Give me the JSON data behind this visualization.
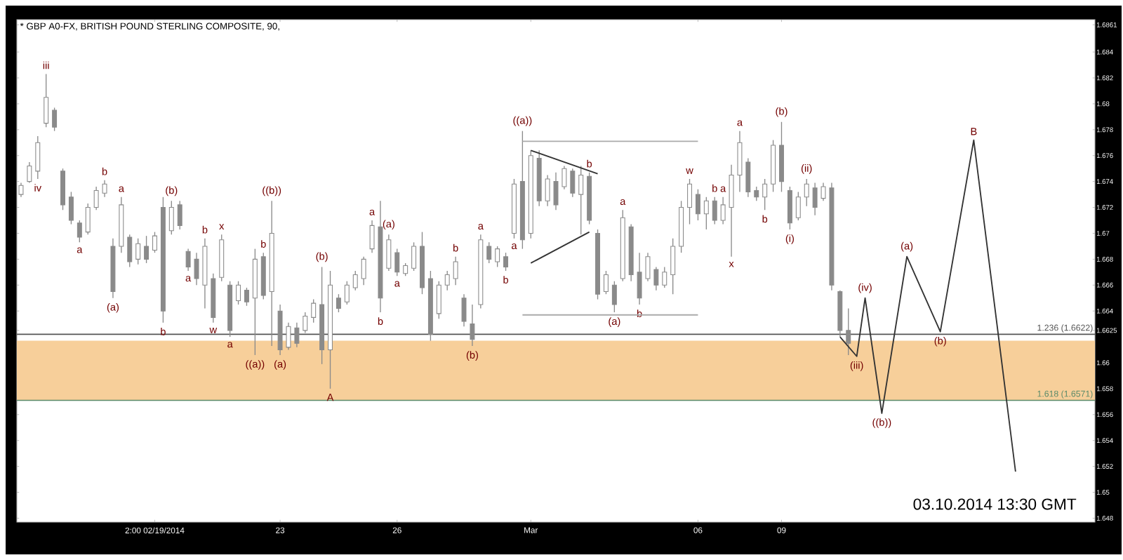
{
  "chart_data": {
    "type": "candlestick",
    "title": "* GBP A0-FX, BRITISH POUND STERLING COMPOSITE, 90,",
    "color": "#8a8a8a",
    "categories": [
      null,
      null,
      null,
      null,
      null,
      null,
      null,
      null,
      null,
      null,
      null,
      null,
      null,
      null,
      null,
      null,
      "2:00 02/19/2014",
      null,
      null,
      null,
      null,
      null,
      null,
      null,
      null,
      null,
      null,
      null,
      null,
      null,
      null,
      "23",
      null,
      null,
      null,
      null,
      null,
      null,
      null,
      null,
      null,
      null,
      null,
      null,
      null,
      "26",
      null,
      null,
      null,
      null,
      null,
      null,
      null,
      null,
      null,
      null,
      null,
      null,
      null,
      null,
      null,
      "Mar",
      null,
      null,
      null,
      null,
      null,
      null,
      null,
      null,
      null,
      null,
      null,
      null,
      null,
      null,
      null,
      null,
      null,
      null,
      null,
      "06",
      null,
      null,
      null,
      null,
      null,
      null,
      null,
      null,
      null,
      "09",
      null,
      null,
      null,
      null,
      null,
      null,
      null,
      null,
      null,
      null,
      null,
      null,
      null,
      null,
      null,
      null,
      null,
      null,
      null,
      null,
      null,
      null,
      null,
      null,
      null,
      null,
      null,
      null,
      null,
      null,
      null,
      null,
      null,
      null,
      null,
      null,
      null
    ],
    "ohlc": [
      [
        1.673,
        1.6739,
        1.6728,
        1.6737
      ],
      [
        1.674,
        1.6755,
        1.6739,
        1.6752
      ],
      [
        1.6748,
        1.6775,
        1.6742,
        1.677
      ],
      [
        1.6785,
        1.6823,
        1.6782,
        1.6805
      ],
      [
        1.6795,
        1.6797,
        1.6779,
        1.6782
      ],
      [
        1.6748,
        1.675,
        1.6718,
        1.6722
      ],
      [
        1.6728,
        1.6732,
        1.6707,
        1.671
      ],
      [
        1.6708,
        1.671,
        1.6693,
        1.6697
      ],
      [
        1.6701,
        1.6723,
        1.6699,
        1.672
      ],
      [
        1.672,
        1.6736,
        1.6718,
        1.6733
      ],
      [
        1.6731,
        1.6741,
        1.6728,
        1.6738
      ],
      [
        1.669,
        1.6696,
        1.665,
        1.6655
      ],
      [
        1.669,
        1.6728,
        1.6685,
        1.6722
      ],
      [
        1.6697,
        1.6699,
        1.6674,
        1.6678
      ],
      [
        1.668,
        1.6696,
        1.6676,
        1.6692
      ],
      [
        1.669,
        1.6698,
        1.6677,
        1.668
      ],
      [
        1.6687,
        1.6701,
        1.6685,
        1.6698
      ],
      [
        1.672,
        1.6728,
        1.6631,
        1.664
      ],
      [
        1.6702,
        1.6725,
        1.6699,
        1.672
      ],
      [
        1.6722,
        1.6725,
        1.6703,
        1.6706
      ],
      [
        1.6686,
        1.6688,
        1.6671,
        1.6674
      ],
      [
        1.668,
        1.6685,
        1.666,
        1.6665
      ],
      [
        1.666,
        1.6696,
        1.6642,
        1.669
      ],
      [
        1.6665,
        1.6669,
        1.6631,
        1.6635
      ],
      [
        1.6666,
        1.6699,
        1.6663,
        1.6695
      ],
      [
        1.666,
        1.6663,
        1.662,
        1.6625
      ],
      [
        1.6648,
        1.6663,
        1.6645,
        1.666
      ],
      [
        1.6656,
        1.6658,
        1.6644,
        1.6647
      ],
      [
        1.665,
        1.6688,
        1.6606,
        1.668
      ],
      [
        1.6682,
        1.6685,
        1.6649,
        1.6652
      ],
      [
        1.6655,
        1.6725,
        1.6613,
        1.67
      ],
      [
        1.664,
        1.6645,
        1.6606,
        1.661
      ],
      [
        1.6612,
        1.6631,
        1.661,
        1.6628
      ],
      [
        1.6627,
        1.6631,
        1.6612,
        1.6615
      ],
      [
        1.6625,
        1.6639,
        1.6623,
        1.6636
      ],
      [
        1.6635,
        1.6649,
        1.6631,
        1.6646
      ],
      [
        1.6645,
        1.6674,
        1.6599,
        1.661
      ],
      [
        1.661,
        1.6671,
        1.658,
        1.666
      ],
      [
        1.665,
        1.6653,
        1.6639,
        1.6642
      ],
      [
        1.6647,
        1.6663,
        1.6645,
        1.666
      ],
      [
        1.6658,
        1.6671,
        1.6656,
        1.6668
      ],
      [
        1.6665,
        1.6682,
        1.666,
        1.668
      ],
      [
        1.6688,
        1.671,
        1.6685,
        1.6706
      ],
      [
        1.6705,
        1.6725,
        1.6639,
        1.665
      ],
      [
        1.6673,
        1.6699,
        1.6671,
        1.6695
      ],
      [
        1.6685,
        1.6688,
        1.6667,
        1.667
      ],
      [
        1.6669,
        1.6677,
        1.6667,
        1.6675
      ],
      [
        1.6673,
        1.6693,
        1.6671,
        1.669
      ],
      [
        1.669,
        1.6701,
        1.6653,
        1.6658
      ],
      [
        1.6665,
        1.6671,
        1.6617,
        1.6622
      ],
      [
        1.6638,
        1.6663,
        1.6634,
        1.666
      ],
      [
        1.666,
        1.6671,
        1.6656,
        1.6668
      ],
      [
        1.6665,
        1.6682,
        1.666,
        1.6678
      ],
      [
        1.665,
        1.6653,
        1.6628,
        1.6632
      ],
      [
        1.663,
        1.6645,
        1.6613,
        1.6618
      ],
      [
        1.6645,
        1.6699,
        1.6642,
        1.6695
      ],
      [
        1.669,
        1.6693,
        1.6677,
        1.668
      ],
      [
        1.6678,
        1.669,
        1.6674,
        1.6688
      ],
      [
        1.6682,
        1.6685,
        1.6671,
        1.6674
      ],
      [
        1.67,
        1.6742,
        1.6696,
        1.6738
      ],
      [
        1.674,
        1.6779,
        1.6688,
        1.6695
      ],
      [
        1.67,
        1.6764,
        1.6696,
        1.676
      ],
      [
        1.6758,
        1.6764,
        1.6721,
        1.6725
      ],
      [
        1.6725,
        1.6745,
        1.6721,
        1.6742
      ],
      [
        1.674,
        1.6747,
        1.6718,
        1.6722
      ],
      [
        1.6736,
        1.6752,
        1.6734,
        1.675
      ],
      [
        1.6748,
        1.675,
        1.6728,
        1.6731
      ],
      [
        1.673,
        1.6752,
        1.6699,
        1.6745
      ],
      [
        1.6744,
        1.6747,
        1.6707,
        1.671
      ],
      [
        1.67,
        1.6703,
        1.6649,
        1.6653
      ],
      [
        1.6655,
        1.6671,
        1.6653,
        1.6668
      ],
      [
        1.666,
        1.6663,
        1.6639,
        1.6645
      ],
      [
        1.6665,
        1.6718,
        1.6663,
        1.6712
      ],
      [
        1.6705,
        1.6707,
        1.6663,
        1.6668
      ],
      [
        1.667,
        1.6685,
        1.6645,
        1.665
      ],
      [
        1.6665,
        1.6685,
        1.6663,
        1.6682
      ],
      [
        1.6672,
        1.6674,
        1.6656,
        1.666
      ],
      [
        1.666,
        1.6674,
        1.6658,
        1.667
      ],
      [
        1.6668,
        1.6696,
        1.6653,
        1.669
      ],
      [
        1.669,
        1.6725,
        1.6685,
        1.672
      ],
      [
        1.672,
        1.6742,
        1.6707,
        1.6738
      ],
      [
        1.673,
        1.6734,
        1.671,
        1.6715
      ],
      [
        1.6715,
        1.6728,
        1.6703,
        1.6725
      ],
      [
        1.6725,
        1.6728,
        1.6707,
        1.671
      ],
      [
        1.671,
        1.6728,
        1.6707,
        1.6722
      ],
      [
        1.672,
        1.6753,
        1.6682,
        1.6745
      ],
      [
        1.6745,
        1.6779,
        1.6732,
        1.677
      ],
      [
        1.6755,
        1.6758,
        1.6728,
        1.6732
      ],
      [
        1.6733,
        1.6736,
        1.6725,
        1.6728
      ],
      [
        1.6728,
        1.6742,
        1.6718,
        1.6738
      ],
      [
        1.6738,
        1.6772,
        1.6732,
        1.6768
      ],
      [
        1.6768,
        1.6786,
        1.6732,
        1.674
      ],
      [
        1.6733,
        1.6736,
        1.6703,
        1.6708
      ],
      [
        1.6712,
        1.6732,
        1.671,
        1.6728
      ],
      [
        1.6728,
        1.6742,
        1.6721,
        1.6738
      ],
      [
        1.6735,
        1.6739,
        1.6714,
        1.672
      ],
      [
        1.6727,
        1.6739,
        1.6725,
        1.6736
      ],
      [
        1.6735,
        1.6739,
        1.6656,
        1.666
      ],
      [
        1.6655,
        1.6656,
        1.662,
        1.6625
      ],
      [
        1.6625,
        1.6642,
        1.6606,
        1.6615
      ],
      null,
      null,
      null,
      null,
      null,
      null,
      null,
      null,
      null,
      null,
      null,
      null,
      null,
      null,
      null,
      null,
      null,
      null,
      null,
      null,
      null,
      null,
      null,
      null,
      null,
      null,
      null,
      null,
      null
    ],
    "value_labels": [
      null,
      null,
      "iv",
      "iii",
      null,
      null,
      null,
      "a",
      null,
      null,
      "b",
      "(a)",
      "a",
      null,
      null,
      null,
      null,
      "b",
      "(b)",
      null,
      "a",
      null,
      "b",
      "w",
      "x",
      "a",
      null,
      null,
      "((a))",
      "b",
      "((b))",
      "(a)",
      null,
      null,
      null,
      null,
      "(b)",
      "A",
      null,
      null,
      null,
      null,
      "a",
      "b",
      "(a)",
      "a",
      null,
      null,
      null,
      null,
      null,
      null,
      "b",
      null,
      "(b)",
      "a",
      null,
      null,
      "b",
      "a",
      "((a))",
      null,
      null,
      null,
      null,
      null,
      null,
      null,
      "b",
      null,
      null,
      "(a)",
      "a",
      null,
      "b",
      null,
      null,
      null,
      null,
      null,
      "w",
      null,
      null,
      "b",
      "a",
      "x",
      "a",
      null,
      null,
      "b",
      null,
      "(b)",
      "(i)",
      null,
      "(ii)",
      null,
      null,
      null,
      null,
      null,
      null,
      null,
      null,
      null,
      null,
      null,
      null,
      null,
      null,
      null,
      null,
      null,
      null,
      null,
      null,
      null,
      null,
      null,
      null,
      null,
      null,
      null,
      null,
      null,
      null,
      null,
      null,
      null,
      null
    ],
    "series": [
      {
        "type": "line",
        "color": "#333333",
        "values": [
          null,
          null,
          null,
          null,
          null,
          null,
          null,
          null,
          null,
          null,
          null,
          null,
          null,
          null,
          null,
          null,
          null,
          null,
          null,
          null,
          null,
          null,
          null,
          null,
          null,
          null,
          null,
          null,
          null,
          null,
          null,
          null,
          null,
          null,
          null,
          null,
          null,
          null,
          null,
          null,
          null,
          null,
          null,
          null,
          null,
          null,
          null,
          null,
          null,
          null,
          null,
          null,
          null,
          null,
          null,
          null,
          null,
          null,
          null,
          null,
          null,
          null,
          null,
          null,
          null,
          null,
          null,
          null,
          null,
          null,
          null,
          null,
          null,
          null,
          null,
          null,
          null,
          null,
          null,
          null,
          null,
          null,
          null,
          null,
          null,
          null,
          null,
          null,
          null,
          null,
          null,
          null,
          null,
          null,
          null,
          null,
          null,
          null,
          1.662,
          null,
          1.6605,
          1.665,
          null,
          1.6561,
          null,
          null,
          1.6682,
          null,
          null,
          null,
          1.6624,
          null,
          null,
          null,
          1.6772,
          null,
          null,
          null,
          null,
          1.6516,
          null,
          null,
          null,
          null,
          null,
          null,
          null,
          null,
          null
        ],
        "value_labels": [
          null,
          null,
          null,
          null,
          null,
          null,
          null,
          null,
          null,
          null,
          null,
          null,
          null,
          null,
          null,
          null,
          null,
          null,
          null,
          null,
          null,
          null,
          null,
          null,
          null,
          null,
          null,
          null,
          null,
          null,
          null,
          null,
          null,
          null,
          null,
          null,
          null,
          null,
          null,
          null,
          null,
          null,
          null,
          null,
          null,
          null,
          null,
          null,
          null,
          null,
          null,
          null,
          null,
          null,
          null,
          null,
          null,
          null,
          null,
          null,
          null,
          null,
          null,
          null,
          null,
          null,
          null,
          null,
          null,
          null,
          null,
          null,
          null,
          null,
          null,
          null,
          null,
          null,
          null,
          null,
          null,
          null,
          null,
          null,
          null,
          null,
          null,
          null,
          null,
          null,
          null,
          null,
          null,
          null,
          null,
          null,
          null,
          null,
          null,
          null,
          "(iii)",
          "(iv)",
          null,
          "((b))",
          null,
          null,
          "(a)",
          null,
          null,
          null,
          "(b)",
          null,
          null,
          null,
          "B",
          null,
          null,
          null,
          null,
          null,
          null,
          null,
          null,
          null,
          null,
          null,
          null,
          null,
          null
        ]
      },
      {
        "type": "line",
        "color": "#333333",
        "values": [
          null,
          null,
          null,
          null,
          null,
          null,
          null,
          null,
          null,
          null,
          null,
          null,
          null,
          null,
          null,
          null,
          null,
          null,
          null,
          null,
          null,
          null,
          null,
          null,
          null,
          null,
          null,
          null,
          null,
          null,
          null,
          null,
          null,
          null,
          null,
          null,
          null,
          null,
          null,
          null,
          null,
          null,
          null,
          null,
          null,
          null,
          null,
          null,
          null,
          null,
          null,
          null,
          null,
          null,
          null,
          null,
          null,
          null,
          null,
          null,
          null,
          1.6764,
          null,
          null,
          null,
          null,
          null,
          null,
          null,
          1.6746,
          null,
          null,
          null,
          null,
          null,
          null,
          null,
          null,
          null,
          null,
          null,
          null,
          null,
          null,
          null,
          null,
          null,
          null,
          null,
          null,
          null,
          null,
          null,
          null,
          null,
          null,
          null,
          null,
          null,
          null,
          null,
          null,
          null,
          null,
          null,
          null,
          null,
          null,
          null,
          null,
          null,
          null,
          null,
          null,
          null,
          null,
          null,
          null,
          null,
          null,
          null,
          null,
          null,
          null,
          null,
          null,
          null,
          null,
          null
        ]
      },
      {
        "type": "line",
        "color": "#333333",
        "values": [
          null,
          null,
          null,
          null,
          null,
          null,
          null,
          null,
          null,
          null,
          null,
          null,
          null,
          null,
          null,
          null,
          null,
          null,
          null,
          null,
          null,
          null,
          null,
          null,
          null,
          null,
          null,
          null,
          null,
          null,
          null,
          null,
          null,
          null,
          null,
          null,
          null,
          null,
          null,
          null,
          null,
          null,
          null,
          null,
          null,
          null,
          null,
          null,
          null,
          null,
          null,
          null,
          null,
          null,
          null,
          null,
          null,
          null,
          null,
          null,
          null,
          1.6677,
          null,
          null,
          null,
          null,
          null,
          null,
          1.6701,
          null,
          null,
          null,
          null,
          null,
          null,
          null,
          null,
          null,
          null,
          null,
          null,
          null,
          null,
          null,
          null,
          null,
          null,
          null,
          null,
          null,
          null,
          null,
          null,
          null,
          null,
          null,
          null,
          null,
          null,
          null,
          null,
          null,
          null,
          null,
          null,
          null,
          null,
          null,
          null,
          null,
          null,
          null,
          null,
          null,
          null,
          null,
          null,
          null,
          null,
          null,
          null,
          null,
          null,
          null,
          null,
          null,
          null,
          null,
          null
        ]
      },
      {
        "type": "line",
        "color": "#aaaaaa",
        "values": [
          null,
          null,
          null,
          null,
          null,
          null,
          null,
          null,
          null,
          null,
          null,
          null,
          null,
          null,
          null,
          null,
          null,
          null,
          null,
          null,
          null,
          null,
          null,
          null,
          null,
          null,
          null,
          null,
          null,
          null,
          null,
          null,
          null,
          null,
          null,
          null,
          null,
          null,
          null,
          null,
          null,
          null,
          null,
          null,
          null,
          null,
          null,
          null,
          null,
          null,
          null,
          null,
          null,
          null,
          null,
          null,
          null,
          null,
          null,
          null,
          1.6771,
          null,
          null,
          null,
          null,
          null,
          null,
          null,
          null,
          null,
          null,
          null,
          null,
          null,
          null,
          null,
          null,
          null,
          null,
          null,
          null,
          1.6771,
          null,
          null,
          null,
          null,
          null,
          null,
          null,
          null,
          null,
          null,
          null,
          null,
          null,
          null,
          null,
          null,
          null,
          null,
          null,
          null,
          null,
          null,
          null,
          null,
          null,
          null,
          null,
          null,
          null,
          null,
          null,
          null,
          null,
          null,
          null,
          null,
          null,
          null,
          null,
          null,
          null,
          null,
          null,
          null,
          null,
          null,
          null
        ]
      },
      {
        "type": "line",
        "color": "#aaaaaa",
        "values": [
          null,
          null,
          null,
          null,
          null,
          null,
          null,
          null,
          null,
          null,
          null,
          null,
          null,
          null,
          null,
          null,
          null,
          null,
          null,
          null,
          null,
          null,
          null,
          null,
          null,
          null,
          null,
          null,
          null,
          null,
          null,
          null,
          null,
          null,
          null,
          null,
          null,
          null,
          null,
          null,
          null,
          null,
          null,
          null,
          null,
          null,
          null,
          null,
          null,
          null,
          null,
          null,
          null,
          null,
          null,
          null,
          null,
          null,
          null,
          null,
          1.6637,
          null,
          null,
          null,
          null,
          null,
          null,
          null,
          null,
          null,
          null,
          null,
          null,
          null,
          null,
          null,
          null,
          null,
          null,
          null,
          null,
          1.6637,
          null,
          null,
          null,
          null,
          null,
          null,
          null,
          null,
          null,
          null,
          null,
          null,
          null,
          null,
          null,
          null,
          null,
          null,
          null,
          null,
          null,
          null,
          null,
          null,
          null,
          null,
          null,
          null,
          null,
          null,
          null,
          null,
          null,
          null,
          null,
          null,
          null,
          null,
          null,
          null,
          null,
          null,
          null,
          null,
          null,
          null,
          null
        ]
      }
    ],
    "ylim": [
      1.6477,
      1.6865
    ],
    "yticks": [
      1.648,
      1.65,
      1.652,
      1.654,
      1.656,
      1.658,
      1.66,
      1.6625,
      1.664,
      1.666,
      1.668,
      1.67,
      1.672,
      1.674,
      1.676,
      1.678,
      1.68,
      1.682,
      1.684,
      1.6861
    ],
    "bands": [
      {
        "axis": "y",
        "from": 1.6571,
        "to": 1.6617,
        "color": "#f7cf9a"
      }
    ],
    "ref_lines": [
      {
        "axis": "y",
        "value": 1.6622,
        "label": "1.236 (1.6622)",
        "color": "#555555"
      },
      {
        "axis": "y",
        "value": 1.6571,
        "label": "1.618 (1.6571)",
        "color": "#5a8a6a"
      }
    ],
    "annotations": [
      "03.10.2014  13:30 GMT"
    ]
  }
}
